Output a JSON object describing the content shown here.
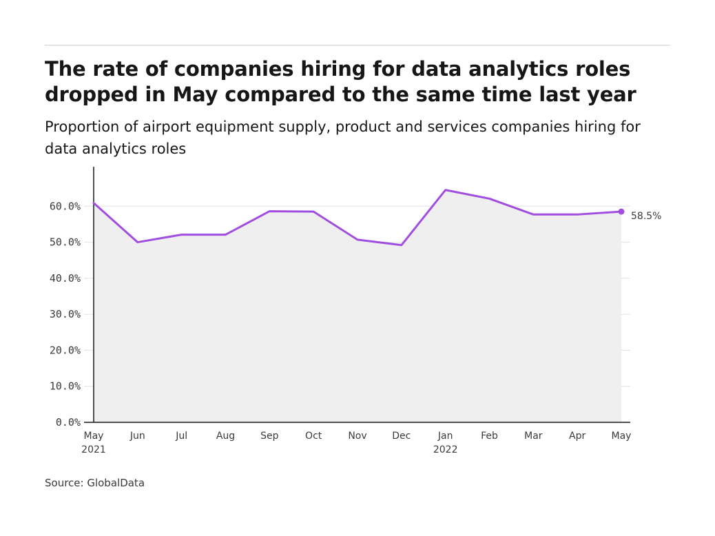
{
  "header": {
    "title": "The rate of companies hiring for data analytics roles dropped in May compared to the same time last year",
    "subtitle": "Proportion of airport equipment supply, product and services companies hiring for data analytics roles"
  },
  "footer": {
    "source": "Source: GlobalData"
  },
  "colors": {
    "line": "#a14de0",
    "area": "#efefef",
    "grid": "#e0e0e0",
    "axis": "#161616"
  },
  "chart_data": {
    "type": "area",
    "title": "The rate of companies hiring for data analytics roles dropped in May compared to the same time last year",
    "subtitle": "Proportion of airport equipment supply, product and services companies hiring for data analytics roles",
    "xlabel": "",
    "ylabel": "",
    "categories": [
      "May 2021",
      "Jun",
      "Jul",
      "Aug",
      "Sep",
      "Oct",
      "Nov",
      "Dec",
      "Jan 2022",
      "Feb",
      "Mar",
      "Apr",
      "May"
    ],
    "x_tick_labels": [
      [
        "May",
        "2021"
      ],
      [
        "Jun"
      ],
      [
        "Jul"
      ],
      [
        "Aug"
      ],
      [
        "Sep"
      ],
      [
        "Oct"
      ],
      [
        "Nov"
      ],
      [
        "Dec"
      ],
      [
        "Jan",
        "2022"
      ],
      [
        "Feb"
      ],
      [
        "Mar"
      ],
      [
        "Apr"
      ],
      [
        "May"
      ]
    ],
    "values": [
      60.9,
      50.0,
      52.1,
      52.1,
      58.6,
      58.5,
      50.7,
      49.2,
      64.5,
      62.1,
      57.7,
      57.7,
      58.5
    ],
    "ylim": [
      0,
      70
    ],
    "y_ticks": [
      0,
      10,
      20,
      30,
      40,
      50,
      60
    ],
    "y_tick_labels": [
      "0.0%",
      "10.0%",
      "20.0%",
      "30.0%",
      "40.0%",
      "50.0%",
      "60.0%"
    ],
    "end_label": "58.5%",
    "grid": true,
    "legend": "none"
  }
}
